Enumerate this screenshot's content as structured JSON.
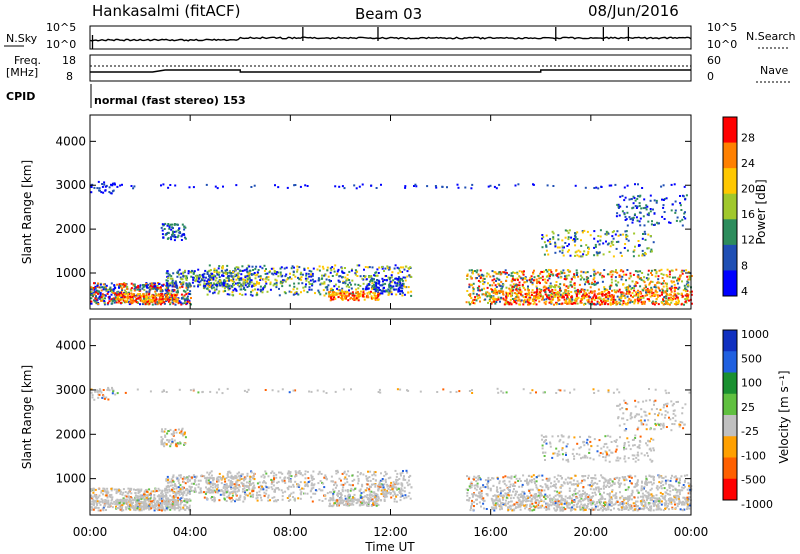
{
  "header": {
    "site": "Hankasalmi (fitACF)",
    "beam": "Beam 03",
    "date": "08/Jun/2016"
  },
  "noise_panel": {
    "left_label": "N.Sky",
    "right_label": "N.Search",
    "ticks_left": [
      "10^5",
      "10^0"
    ],
    "ticks_right": [
      "10^5",
      "10^0"
    ]
  },
  "freq_panel": {
    "left_label_1": "Freq.",
    "left_label_2": "[MHz]",
    "right_label": "Nave",
    "ticks_left": [
      "18",
      "8"
    ],
    "ticks_right": [
      "60",
      "0"
    ]
  },
  "cpid_panel": {
    "label": "CPID",
    "program": "normal (fast stereo) 153"
  },
  "colors": {
    "axis": "#000000",
    "ground_scatter": "#c0c0c0"
  },
  "chart_data": [
    {
      "type": "heatmap",
      "name": "power",
      "ylabel": "Slant Range [km]",
      "ylim": [
        180,
        4600
      ],
      "yticks": [
        "1000",
        "2000",
        "3000",
        "4000"
      ],
      "colorbar": {
        "label": "Power [dB]",
        "ticks": [
          "4",
          "8",
          "12",
          "16",
          "20",
          "24",
          "28"
        ],
        "colors": [
          "#0000ff",
          "#1f4fb4",
          "#2c8c5c",
          "#a0c82c",
          "#ffc800",
          "#ff8000",
          "#ff0000"
        ]
      }
    },
    {
      "type": "heatmap",
      "name": "velocity",
      "ylabel": "Slant Range [km]",
      "xlabel": "Time UT",
      "ylim": [
        180,
        4600
      ],
      "yticks": [
        "1000",
        "2000",
        "3000",
        "4000"
      ],
      "xticks": [
        "00:00",
        "04:00",
        "08:00",
        "12:00",
        "16:00",
        "20:00",
        "00:00"
      ],
      "xlim_hours": [
        0,
        24
      ],
      "colorbar": {
        "label": "Velocity [m s⁻¹]",
        "ticks": [
          "1000",
          "500",
          "100",
          "25",
          "-25",
          "-100",
          "-500",
          "-1000"
        ],
        "colors": [
          "#1030c0",
          "#2060e0",
          "#1a9030",
          "#60c040",
          "#c0c0c0",
          "#ffa000",
          "#ff6000",
          "#ff0000"
        ]
      }
    }
  ]
}
